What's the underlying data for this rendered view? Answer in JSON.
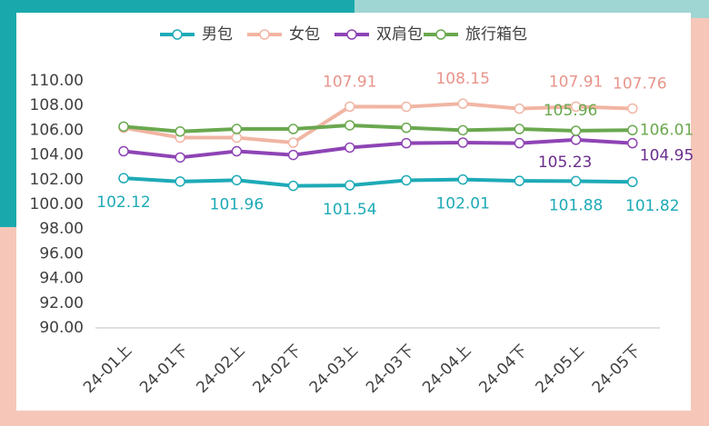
{
  "chart_data": {
    "type": "line",
    "categories": [
      "24-01上",
      "24-01下",
      "24-02上",
      "24-02下",
      "24-03上",
      "24-03下",
      "24-04上",
      "24-04下",
      "24-05上",
      "24-05下"
    ],
    "series": [
      {
        "name": "男包",
        "color": "#1eaab7",
        "values": [
          102.12,
          101.85,
          101.96,
          101.5,
          101.54,
          101.95,
          102.01,
          101.9,
          101.88,
          101.82
        ],
        "value_labels": [
          "102.12",
          null,
          "101.96",
          null,
          "101.54",
          null,
          "102.01",
          null,
          "101.88",
          "101.82"
        ]
      },
      {
        "name": "女包",
        "color": "#f1b5a3",
        "values": [
          106.2,
          105.4,
          105.4,
          105.0,
          107.91,
          107.9,
          108.15,
          107.75,
          107.91,
          107.76
        ],
        "value_labels": [
          null,
          null,
          null,
          null,
          "107.91",
          null,
          "108.15",
          null,
          "107.91",
          "107.76"
        ]
      },
      {
        "name": "双肩包",
        "color": "#8e44b5",
        "values": [
          104.3,
          103.8,
          104.3,
          104.0,
          104.6,
          104.95,
          105.0,
          104.95,
          105.23,
          104.95
        ],
        "value_labels": [
          null,
          null,
          null,
          null,
          null,
          null,
          null,
          null,
          "105.23",
          "104.95"
        ]
      },
      {
        "name": "旅行箱包",
        "color": "#6aa84f",
        "values": [
          106.3,
          105.9,
          106.1,
          106.1,
          106.4,
          106.2,
          106.0,
          106.1,
          105.96,
          106.01
        ],
        "value_labels": [
          null,
          null,
          null,
          null,
          null,
          null,
          null,
          null,
          "105.96",
          "106.01"
        ]
      }
    ],
    "ylim": [
      90,
      110
    ],
    "yticks": [
      {
        "value": 90,
        "label": "90.00"
      },
      {
        "value": 92,
        "label": "92.00"
      },
      {
        "value": 94,
        "label": "94.00"
      },
      {
        "value": 96,
        "label": "96.00"
      },
      {
        "value": 98,
        "label": "98.00"
      },
      {
        "value": 100,
        "label": "100.00"
      },
      {
        "value": 102,
        "label": "102.00"
      },
      {
        "value": 104,
        "label": "104.00"
      },
      {
        "value": 106,
        "label": "106.00"
      },
      {
        "value": 108,
        "label": "108.00"
      },
      {
        "value": 110,
        "label": "110.00"
      }
    ],
    "legend": "top"
  }
}
